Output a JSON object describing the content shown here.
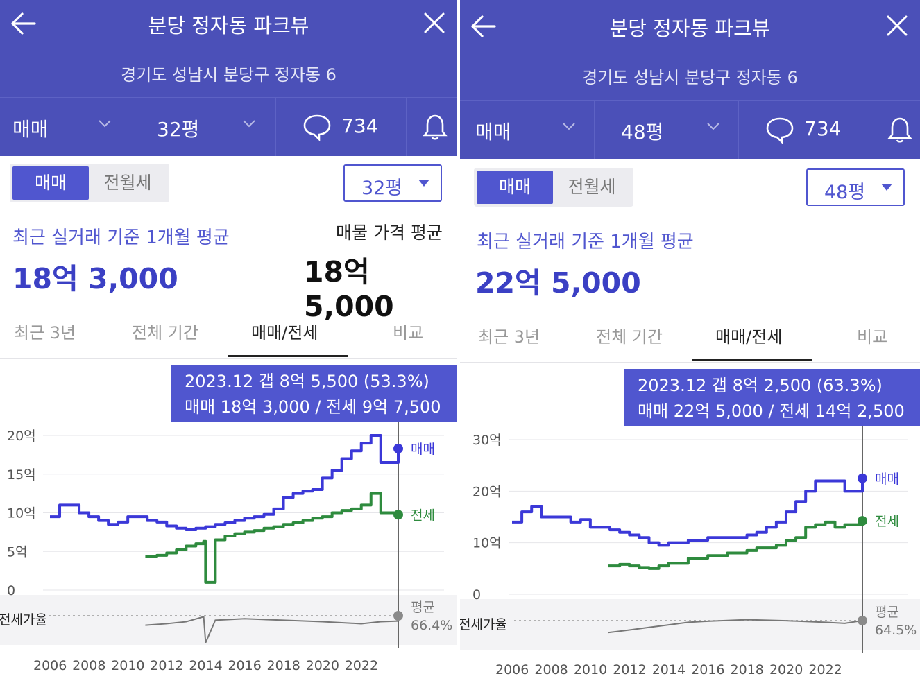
{
  "colors": {
    "header_bg": "#4b50b8",
    "accent": "#5056cf",
    "sale_line": "#3b38d8",
    "jeonse_line": "#2e8b3e",
    "ratio_line": "#777777"
  },
  "panels": [
    {
      "header": {
        "title": "분당 정자동 파크뷰",
        "address": "경기도 성남시 분당구 정자동 6"
      },
      "toolbar": {
        "trade_type": "매매",
        "size": "32평",
        "comment_count": "734"
      },
      "segment": {
        "active": "매매",
        "inactive": "전월세"
      },
      "size_select": "32평",
      "summary": {
        "label": "최근 실거래 기준 1개월 평균",
        "value": "18억 3,000",
        "ask_label": "매물 가격 평균",
        "ask_value": "18억 5,000"
      },
      "tabs": [
        "최근 3년",
        "전체 기간",
        "매매/전세",
        "비교"
      ],
      "active_tab": "매매/전세",
      "tooltip": {
        "line1": "2023.12  갭 8억 5,500 (53.3%)",
        "line2": "매매 18억 3,000 / 전세 9억 7,500"
      },
      "chart_data": {
        "type": "line",
        "y_ticks": [
          "20억",
          "15억",
          "10억",
          "5억",
          "0"
        ],
        "ylim": [
          0,
          20
        ],
        "x_ticks": [
          "2006",
          "2008",
          "2010",
          "2012",
          "2014",
          "2016",
          "2018",
          "2020",
          "2022"
        ],
        "series": [
          {
            "name": "매매",
            "x": [
              2006.0,
              2006.5,
              2007.0,
              2007.5,
              2008.0,
              2008.5,
              2009.0,
              2009.5,
              2010.0,
              2010.5,
              2011.0,
              2011.5,
              2012.0,
              2012.5,
              2013.0,
              2013.5,
              2014.0,
              2014.5,
              2015.0,
              2015.5,
              2016.0,
              2016.5,
              2017.0,
              2017.5,
              2018.0,
              2018.5,
              2019.0,
              2019.5,
              2020.0,
              2020.5,
              2021.0,
              2021.5,
              2022.0,
              2022.5,
              2023.0,
              2023.9
            ],
            "values": [
              9.5,
              11,
              11,
              10,
              9.5,
              9,
              8.5,
              8.8,
              9.5,
              9.5,
              9.0,
              8.8,
              8.3,
              8.0,
              7.8,
              8.0,
              8.2,
              8.5,
              8.7,
              9.0,
              9.3,
              9.5,
              9.8,
              10.5,
              12,
              12.5,
              12.8,
              13,
              14.5,
              15.5,
              17,
              18,
              19,
              20,
              16.5,
              18.3
            ]
          },
          {
            "name": "전세",
            "x": [
              2010.9,
              2011.5,
              2012.0,
              2012.5,
              2013.0,
              2013.5,
              2013.9,
              2014.0,
              2014.5,
              2015.0,
              2015.5,
              2016.0,
              2016.5,
              2017.0,
              2017.5,
              2018.0,
              2018.5,
              2019.0,
              2019.5,
              2020.0,
              2020.5,
              2021.0,
              2021.5,
              2022.0,
              2022.5,
              2023.0,
              2023.9
            ],
            "values": [
              4.3,
              4.5,
              4.8,
              5.2,
              5.7,
              6.0,
              6.3,
              1.0,
              6.5,
              7.0,
              7.3,
              7.5,
              7.7,
              8.0,
              8.2,
              8.5,
              8.7,
              9.0,
              9.3,
              9.5,
              10.0,
              10.3,
              10.5,
              11.0,
              12.5,
              10.0,
              9.75
            ]
          },
          {
            "name": "전세가율",
            "x": [
              2010.9,
              2012,
              2013,
              2013.9,
              2014,
              2014.5,
              2016,
              2018,
              2020,
              2022,
              2023,
              2023.9
            ],
            "values": [
              45,
              48,
              52,
              62,
              10,
              55,
              58,
              55,
              52,
              48,
              52,
              53.3
            ]
          }
        ],
        "end_labels": {
          "sale": "매매",
          "jeonse": "전세",
          "ratio_label": "전세가율",
          "avg_label": "평균",
          "avg_value": "66.4%"
        }
      }
    },
    {
      "header": {
        "title": "분당 정자동 파크뷰",
        "address": "경기도 성남시 분당구 정자동 6"
      },
      "toolbar": {
        "trade_type": "매매",
        "size": "48평",
        "comment_count": "734"
      },
      "segment": {
        "active": "매매",
        "inactive": "전월세"
      },
      "size_select": "48평",
      "summary": {
        "label": "최근 실거래 기준 1개월 평균",
        "value": "22억 5,000",
        "ask_label": "",
        "ask_value": ""
      },
      "tabs": [
        "최근 3년",
        "전체 기간",
        "매매/전세",
        "비교"
      ],
      "active_tab": "매매/전세",
      "tooltip": {
        "line1": "2023.12  갭 8억 2,500 (63.3%)",
        "line2": "매매 22억 5,000 / 전세 14억 2,500"
      },
      "chart_data": {
        "type": "line",
        "y_ticks": [
          "30억",
          "20억",
          "10억",
          "0"
        ],
        "ylim": [
          0,
          30
        ],
        "x_ticks": [
          "2006",
          "2008",
          "2010",
          "2012",
          "2014",
          "2016",
          "2018",
          "2020",
          "2022"
        ],
        "series": [
          {
            "name": "매매",
            "x": [
              2006.0,
              2006.5,
              2007.0,
              2007.5,
              2008.0,
              2008.5,
              2009.0,
              2009.5,
              2010.0,
              2010.5,
              2011.0,
              2011.5,
              2012.0,
              2012.5,
              2013.0,
              2013.5,
              2014.0,
              2015.0,
              2016.0,
              2017.0,
              2018.0,
              2018.5,
              2019.0,
              2019.5,
              2020.0,
              2020.5,
              2021.0,
              2021.5,
              2022.0,
              2022.5,
              2023.0,
              2023.9
            ],
            "values": [
              14,
              16,
              17,
              15,
              15,
              15,
              14,
              14.5,
              13,
              13,
              12.5,
              12,
              11.5,
              11,
              10,
              9.5,
              10,
              10.5,
              11,
              11,
              11.5,
              12,
              13,
              14,
              16,
              18,
              20,
              22,
              22,
              22,
              20,
              22.5
            ]
          },
          {
            "name": "전세",
            "x": [
              2010.9,
              2011.5,
              2012.0,
              2012.5,
              2013.0,
              2013.5,
              2014.0,
              2015.0,
              2016.0,
              2017.0,
              2018.0,
              2018.5,
              2019.0,
              2019.5,
              2020.0,
              2020.5,
              2021.0,
              2021.5,
              2022.0,
              2022.5,
              2023.0,
              2023.9
            ],
            "values": [
              5.5,
              5.8,
              5.5,
              5.2,
              5.0,
              5.5,
              6.0,
              7.0,
              7.5,
              8.0,
              8.5,
              9.0,
              9.0,
              9.5,
              10.5,
              11.0,
              13.0,
              13.5,
              14.0,
              13.0,
              13.5,
              14.25
            ]
          },
          {
            "name": "전세가율",
            "x": [
              2010.9,
              2012,
              2013,
              2014,
              2015,
              2016,
              2018,
              2020,
              2022,
              2023,
              2023.9
            ],
            "values": [
              40,
              45,
              50,
              55,
              60,
              62,
              65,
              63,
              60,
              58,
              63.3
            ]
          }
        ],
        "end_labels": {
          "sale": "매매",
          "jeonse": "전세",
          "ratio_label": "전세가율",
          "avg_label": "평균",
          "avg_value": "64.5%"
        }
      }
    }
  ]
}
